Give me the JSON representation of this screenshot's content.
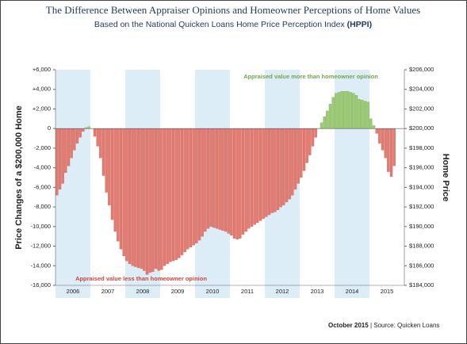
{
  "chart_data": {
    "type": "bar",
    "title": "The Difference Between Appraiser Opinions and Homeowner Perceptions of Home Values",
    "subtitle": "Based on the National Quicken Loans Home Price Perception Index",
    "subtitle_emphasis": "(HPPI)",
    "y_label": "Price Changes of a $200,000 Home",
    "y2_label": "Home Price",
    "annotations": [
      "Appraised value more than homeowner opinion",
      "Appraised value less than homeowner opinion"
    ],
    "footer_date": "October 2015",
    "footer_source": "| Source: Quicken Loans",
    "years": [
      "2006",
      "2007",
      "2008",
      "2009",
      "2010",
      "2011",
      "2012",
      "2013",
      "2014",
      "2015"
    ],
    "positive_color": "#9dcb72",
    "negative_color": "#e27b71",
    "band_color": "#dcedf8",
    "values": [
      -6800,
      -6200,
      -5600,
      -4500,
      -3800,
      -3000,
      -2200,
      -1500,
      -900,
      -300,
      100,
      200,
      0,
      -800,
      -1800,
      -3000,
      -4800,
      -6500,
      -7800,
      -9300,
      -10500,
      -11500,
      -12300,
      -13000,
      -13500,
      -13800,
      -14000,
      -14100,
      -14200,
      -14300,
      -14500,
      -14900,
      -14700,
      -14600,
      -14300,
      -14500,
      -14400,
      -14000,
      -13800,
      -13600,
      -13500,
      -13400,
      -13200,
      -12900,
      -12600,
      -12300,
      -12100,
      -11900,
      -11700,
      -11400,
      -11000,
      -10500,
      -10200,
      -10000,
      -10100,
      -10200,
      -10300,
      -10400,
      -10500,
      -10700,
      -10900,
      -11200,
      -11300,
      -11200,
      -10800,
      -10500,
      -10200,
      -10000,
      -9800,
      -9600,
      -9400,
      -9200,
      -9000,
      -8800,
      -8600,
      -8500,
      -8300,
      -8000,
      -7800,
      -7500,
      -7200,
      -6800,
      -6200,
      -5600,
      -5000,
      -4300,
      -3500,
      -2700,
      -1800,
      -900,
      0,
      600,
      1200,
      1800,
      2500,
      3200,
      3600,
      3700,
      3800,
      3800,
      3800,
      3700,
      3600,
      3400,
      3000,
      2900,
      2800,
      2700,
      1000,
      300,
      -500,
      -1500,
      -2200,
      -3000,
      -4400,
      -4900,
      -3800
    ],
    "ylim": [
      -16000,
      6000
    ],
    "yticks": [
      {
        "value": -16000,
        "label": "-16,000"
      },
      {
        "value": -14000,
        "label": "-14,000"
      },
      {
        "value": -12000,
        "label": "-12,000"
      },
      {
        "value": -10000,
        "label": "-10,000"
      },
      {
        "value": -8000,
        "label": "-8,000"
      },
      {
        "value": -6000,
        "label": "-6,000"
      },
      {
        "value": -4000,
        "label": "-4,000"
      },
      {
        "value": -2000,
        "label": "-2,000"
      },
      0,
      {
        "value": 2000,
        "label": "+2,000"
      },
      {
        "value": 4000,
        "label": "+4,000"
      },
      {
        "value": 6000,
        "label": "+6,000"
      }
    ],
    "y2lim": [
      184000,
      206000
    ],
    "y2ticks": [
      {
        "value": 184000,
        "label": "$184,000"
      },
      {
        "value": 186000,
        "label": "$186,000"
      },
      {
        "value": 188000,
        "label": "$188,000"
      },
      {
        "value": 190000,
        "label": "$190,000"
      },
      {
        "value": 192000,
        "label": "$192,000"
      },
      {
        "value": 194000,
        "label": "$194,000"
      },
      {
        "value": 196000,
        "label": "$196,000"
      },
      {
        "value": 198000,
        "label": "$198,000"
      },
      {
        "value": 200000,
        "label": "$200,000"
      },
      {
        "value": 202000,
        "label": "$202,000"
      },
      {
        "value": 204000,
        "label": "$204,000"
      },
      {
        "value": 206000,
        "label": "$206,000"
      }
    ]
  }
}
